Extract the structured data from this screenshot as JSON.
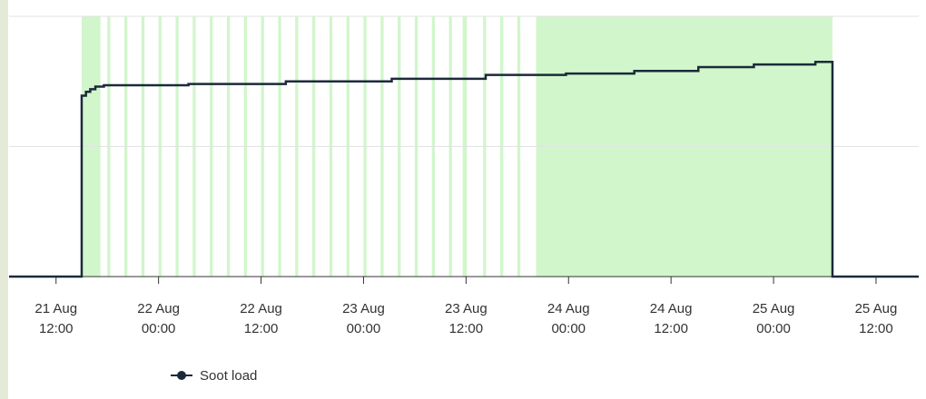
{
  "chart_data": {
    "type": "step",
    "series": [
      {
        "name": "Soot load",
        "color": "#1b2a3a",
        "x": [
          6.5,
          15.0,
          15.5,
          16.0,
          16.6,
          17.6,
          27.5,
          38.9,
          51.3,
          62.3,
          71.7,
          79.7,
          87.2,
          93.7,
          100.9,
          102.9,
          113
        ],
        "values": [
          0,
          1.39,
          1.42,
          1.44,
          1.46,
          1.47,
          1.48,
          1.5,
          1.52,
          1.55,
          1.56,
          1.58,
          1.61,
          1.63,
          1.65,
          0,
          0
        ]
      }
    ],
    "shaded": [
      [
        15.0,
        17.2
      ],
      [
        18,
        18.35
      ],
      [
        20,
        20.35
      ],
      [
        22,
        22.35
      ],
      [
        24,
        24.35
      ],
      [
        26,
        26.35
      ],
      [
        28,
        28.35
      ],
      [
        30,
        30.35
      ],
      [
        32,
        32.35
      ],
      [
        34,
        34.35
      ],
      [
        36,
        36.35
      ],
      [
        38,
        38.35
      ],
      [
        40,
        40.35
      ],
      [
        42,
        42.35
      ],
      [
        44,
        44.35
      ],
      [
        46,
        46.35
      ],
      [
        48,
        48.35
      ],
      [
        50,
        50.35
      ],
      [
        52,
        52.35
      ],
      [
        54,
        54.35
      ],
      [
        56,
        56.35
      ],
      [
        58,
        58.35
      ],
      [
        59.6,
        60.1
      ],
      [
        62,
        62.35
      ],
      [
        64,
        64.35
      ],
      [
        66,
        66.35
      ],
      [
        68.2,
        102.9
      ]
    ],
    "shade_color": "#c9f5c2",
    "xlim": [
      6.5,
      113
    ],
    "xticks": [
      {
        "value": 12,
        "label": "21 Aug 12:00"
      },
      {
        "value": 24,
        "label": "22 Aug 00:00"
      },
      {
        "value": 36,
        "label": "22 Aug 12:00"
      },
      {
        "value": 48,
        "label": "23 Aug 00:00"
      },
      {
        "value": 60,
        "label": "23 Aug 12:00"
      },
      {
        "value": 72,
        "label": "24 Aug 00:00"
      },
      {
        "value": 84,
        "label": "24 Aug 12:00"
      },
      {
        "value": 96,
        "label": "25 Aug 00:00"
      },
      {
        "value": 108,
        "label": "25 Aug 12:00"
      }
    ],
    "ylim": [
      0,
      2
    ],
    "yticks": [
      0,
      1,
      2
    ],
    "grid": true,
    "legend": "bottom-left"
  }
}
